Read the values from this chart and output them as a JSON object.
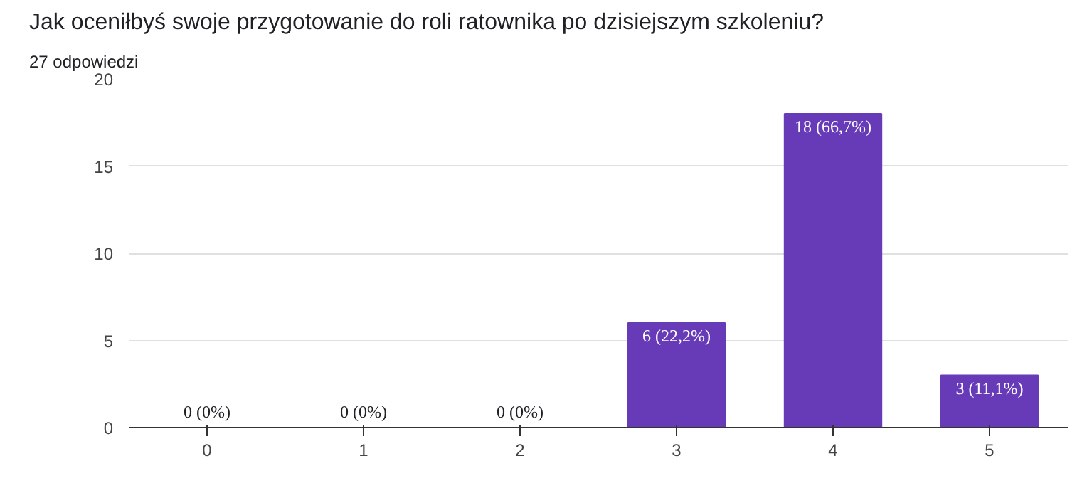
{
  "chart_data": {
    "type": "bar",
    "title": "Jak oceniłbyś swoje przygotowanie do roli ratownika po dzisiejszym szkoleniu?",
    "subtitle": "27 odpowiedzi",
    "categories": [
      "0",
      "1",
      "2",
      "3",
      "4",
      "5"
    ],
    "values": [
      0,
      0,
      0,
      6,
      18,
      3
    ],
    "value_labels": [
      "0 (0%)",
      "0 (0%)",
      "0 (0%)",
      "6 (22,2%)",
      "18 (66,7%)",
      "3 (11,1%)"
    ],
    "color": "#673ab7",
    "ylim": [
      0,
      20
    ],
    "yticks": [
      0,
      5,
      10,
      15,
      20
    ],
    "grid": "y"
  }
}
